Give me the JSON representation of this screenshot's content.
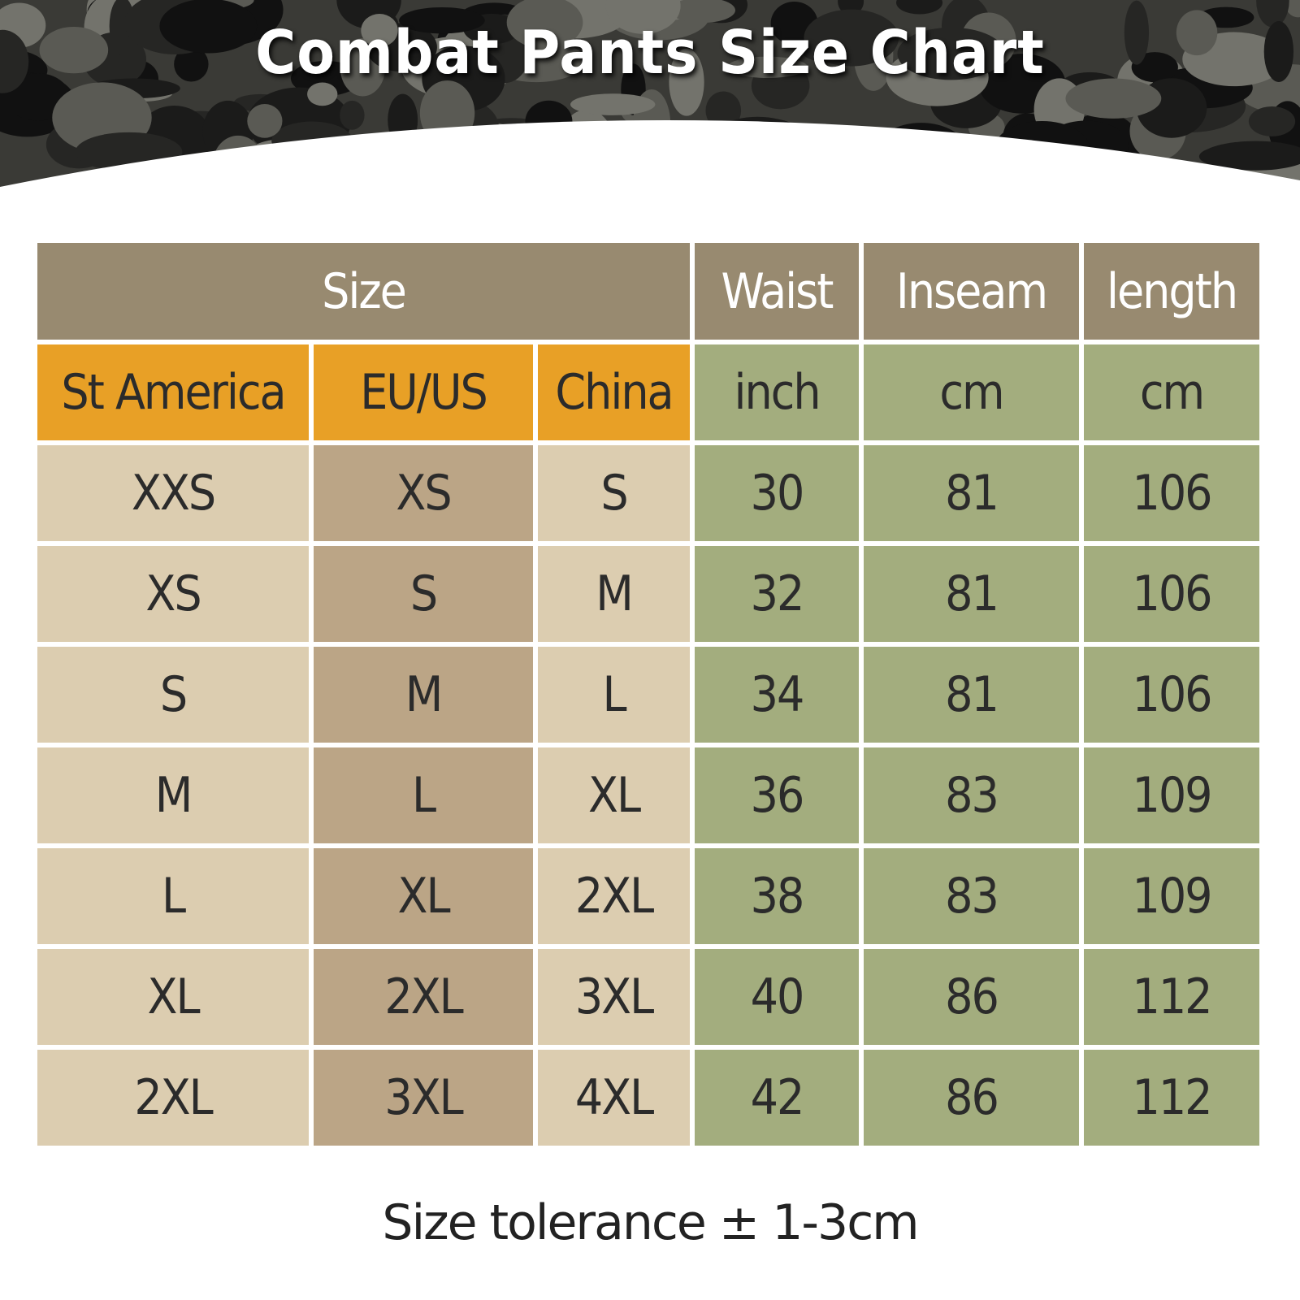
{
  "title": "Combat Pants Size Chart",
  "colors": {
    "header": "#988a70",
    "region_header": "#e8a026",
    "measure": "#a3ad7e",
    "size_light": "#dccdb0",
    "size_dark": "#bba586"
  },
  "table": {
    "group_headers": [
      "Size",
      "Waist",
      "Inseam",
      "length"
    ],
    "sub_headers": [
      "St America",
      "EU/US",
      "China",
      "inch",
      "cm",
      "cm"
    ],
    "rows": [
      [
        "XXS",
        "XS",
        "S",
        "30",
        "81",
        "106"
      ],
      [
        "XS",
        "S",
        "M",
        "32",
        "81",
        "106"
      ],
      [
        "S",
        "M",
        "L",
        "34",
        "81",
        "106"
      ],
      [
        "M",
        "L",
        "XL",
        "36",
        "83",
        "109"
      ],
      [
        "L",
        "XL",
        "2XL",
        "38",
        "83",
        "109"
      ],
      [
        "XL",
        "2XL",
        "3XL",
        "40",
        "86",
        "112"
      ],
      [
        "2XL",
        "3XL",
        "4XL",
        "42",
        "86",
        "112"
      ]
    ]
  },
  "footer": {
    "tolerance": "Size tolerance ± 1-3cm"
  }
}
